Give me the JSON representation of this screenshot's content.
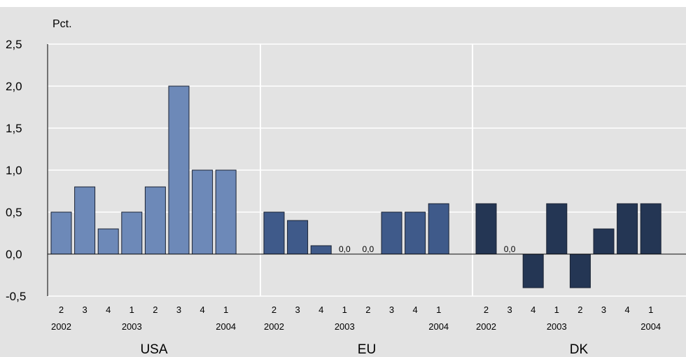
{
  "chart_data": {
    "type": "bar",
    "unit_label": "Pct.",
    "ylim": [
      -0.5,
      2.5
    ],
    "yticks": [
      "2,5",
      "2,0",
      "1,5",
      "1,0",
      "0,5",
      "0,0",
      "-0,5"
    ],
    "ytick_values": [
      2.5,
      2.0,
      1.5,
      1.0,
      0.5,
      0.0,
      -0.5
    ],
    "grid": true,
    "quarter_labels": [
      "2",
      "3",
      "4",
      "1",
      "2",
      "3",
      "4",
      "1"
    ],
    "year_labels": [
      "2002",
      "2003",
      "2004"
    ],
    "year_label_positions": [
      0,
      3,
      7
    ],
    "zero_label": "0,0",
    "panels": [
      {
        "name": "USA",
        "color": "#6d89b8",
        "values": [
          0.5,
          0.8,
          0.3,
          0.5,
          0.8,
          2.0,
          1.0,
          1.0
        ]
      },
      {
        "name": "EU",
        "color": "#3f5a8a",
        "values": [
          0.5,
          0.4,
          0.1,
          0.0,
          0.0,
          0.5,
          0.5,
          0.6
        ]
      },
      {
        "name": "DK",
        "color": "#243654",
        "values": [
          0.6,
          0.0,
          -0.4,
          0.6,
          -0.4,
          0.3,
          0.6,
          0.6
        ]
      }
    ]
  },
  "colors": {
    "page_background": "#ffffff",
    "plot_background": "#e3e3e3",
    "grid": "#ffffff",
    "axis": "#000000",
    "text": "#000000"
  }
}
